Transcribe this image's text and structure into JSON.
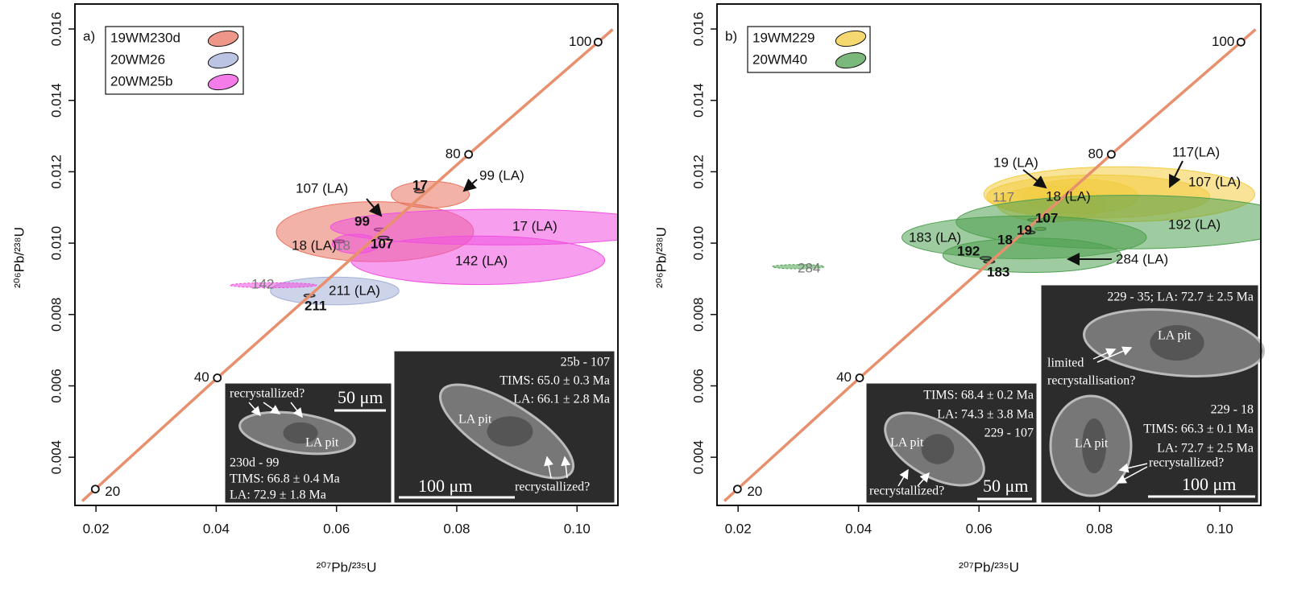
{
  "chart_data": [
    {
      "type": "concordia",
      "panel": "a)",
      "xlabel": "²⁰⁷Pb/²³⁵U",
      "ylabel": "²⁰⁶Pb/²³⁸U",
      "xlim": [
        0.0165,
        0.1068
      ],
      "ylim": [
        0.00265,
        0.0167
      ],
      "xticks": [
        0.02,
        0.04,
        0.06,
        0.08,
        {
          "value": 0.1,
          "label": "0.10"
        }
      ],
      "yticks": [
        0.004,
        0.006,
        0.008,
        {
          "value": 0.01,
          "label": "0.010"
        },
        0.012,
        0.014,
        0.016
      ],
      "concordia": {
        "color": "#e8906e",
        "ages": [
          20,
          40,
          80,
          100
        ],
        "x": [
          0.01989,
          0.04018,
          0.08197,
          0.1035
        ],
        "y": [
          0.003107,
          0.006224,
          0.012487,
          0.015633
        ]
      },
      "series": [
        {
          "name": "19WM230d",
          "color": "#e8735f",
          "ellipses": [
            {
              "x": 0.0664,
              "y": 0.01032,
              "ex": 0.0164,
              "ey": 0.00084,
              "label": "18 (LA)"
            },
            {
              "x": 0.0756,
              "y": 0.01136,
              "ex": 0.0065,
              "ey": 0.00037,
              "label": "99 (LA)"
            },
            {
              "x": 0.0672,
              "y": 0.01038,
              "ex": 0.0009,
              "ey": 4e-05,
              "label": "99"
            },
            {
              "x": 0.0738,
              "y": 0.01145,
              "ex": 0.0008,
              "ey": 4e-05,
              "label": "17"
            },
            {
              "x": 0.0605,
              "y": 0.01005,
              "ex": 0.0008,
              "ey": 4e-05,
              "label": "18"
            }
          ]
        },
        {
          "name": "20WM26",
          "color": "#a4b0d8",
          "ellipses": [
            {
              "x": 0.0597,
              "y": 0.00866,
              "ex": 0.0107,
              "ey": 0.00039,
              "label": "211 (LA)"
            },
            {
              "x": 0.0555,
              "y": 0.00853,
              "ex": 0.0009,
              "ey": 4e-05,
              "label": "211"
            }
          ]
        },
        {
          "name": "20WM25b",
          "color": "#f050e0",
          "ellipses": [
            {
              "x": 0.0872,
              "y": 0.01045,
              "ex": 0.0282,
              "ey": 0.0005,
              "label": "17 (LA)"
            },
            {
              "x": 0.0835,
              "y": 0.00952,
              "ex": 0.0211,
              "ey": 0.00068,
              "label": "142 (LA)"
            },
            {
              "x": 0.0632,
              "y": 0.00998,
              "ex": 0.0039,
              "ey": 0.00027,
              "label": "107 (LA)"
            },
            {
              "x": 0.0495,
              "y": 0.00882,
              "ex": 0.0072,
              "ey": 7e-05,
              "label": "142",
              "dashed": true
            },
            {
              "x": 0.0678,
              "y": 0.01015,
              "ex": 0.0009,
              "ey": 4e-05,
              "label": "107"
            }
          ]
        }
      ],
      "insets": [
        {
          "texts": [
            "recrystallized?",
            "50 μm",
            "LA pit",
            "230d - 99",
            "TIMS: 66.8 ± 0.4 Ma",
            "LA: 72.9 ± 1.8 Ma"
          ]
        },
        {
          "texts": [
            "25b - 107",
            "TIMS: 65.0 ± 0.3 Ma",
            "LA: 66.1 ± 2.8 Ma",
            "LA pit",
            "recrystallized?",
            "100 μm"
          ]
        }
      ]
    },
    {
      "type": "concordia",
      "panel": "b)",
      "xlabel": "²⁰⁷Pb/²³⁵U",
      "ylabel": "²⁰⁶Pb/²³⁸U",
      "xlim": [
        0.0165,
        0.1068
      ],
      "ylim": [
        0.00265,
        0.0167
      ],
      "xticks": [
        0.02,
        0.04,
        0.06,
        0.08,
        {
          "value": 0.1,
          "label": "0.10"
        }
      ],
      "yticks": [
        0.004,
        0.006,
        0.008,
        {
          "value": 0.01,
          "label": "0.010"
        },
        0.012,
        0.014,
        0.016
      ],
      "concordia": {
        "color": "#e8906e",
        "ages": [
          20,
          40,
          80,
          100
        ],
        "x": [
          0.01989,
          0.04018,
          0.08197,
          0.1035
        ],
        "y": [
          0.003107,
          0.006224,
          0.012487,
          0.015633
        ]
      },
      "series": [
        {
          "name": "19WM229",
          "color": "#f2cc40",
          "ellipses": [
            {
              "x": 0.0833,
              "y": 0.01137,
              "ex": 0.0225,
              "ey": 0.00077,
              "label": "117(LA)"
            },
            {
              "x": 0.0798,
              "y": 0.01131,
              "ex": 0.0185,
              "ey": 0.0006,
              "label": "107 (LA)"
            },
            {
              "x": 0.0769,
              "y": 0.01131,
              "ex": 0.0095,
              "ey": 0.00048,
              "label": "18 (LA)"
            },
            {
              "x": 0.072,
              "y": 0.0111,
              "ex": 0.009,
              "ey": 0.0005,
              "label": "19 (LA)"
            },
            {
              "x": 0.0711,
              "y": 0.0113,
              "ex": 0.0012,
              "ey": 3e-05,
              "label": "117",
              "dashed": true
            },
            {
              "x": 0.0697,
              "y": 0.01065,
              "ex": 0.0016,
              "ey": 4e-05,
              "label": "107"
            },
            {
              "x": 0.0702,
              "y": 0.0104,
              "ex": 0.0009,
              "ey": 4e-05,
              "label": "19"
            }
          ]
        },
        {
          "name": "20WM40",
          "color": "#4fa050",
          "ellipses": [
            {
              "x": 0.0847,
              "y": 0.01059,
              "ex": 0.0285,
              "ey": 0.00075,
              "label": "192 (LA)"
            },
            {
              "x": 0.0675,
              "y": 0.01016,
              "ex": 0.0203,
              "ey": 0.0006,
              "label": "183 (LA)"
            },
            {
              "x": 0.0688,
              "y": 0.00966,
              "ex": 0.0148,
              "ey": 0.00048,
              "label": "284 (LA)"
            },
            {
              "x": 0.03,
              "y": 0.00934,
              "ex": 0.0043,
              "ey": 6e-05,
              "label": "284",
              "dashed": true
            },
            {
              "x": 0.0611,
              "y": 0.00958,
              "ex": 0.0009,
              "ey": 4e-05,
              "label": "192"
            },
            {
              "x": 0.0617,
              "y": 0.00948,
              "ex": 0.0009,
              "ey": 4e-05,
              "label": "183"
            },
            {
              "x": 0.0684,
              "y": 0.0103,
              "ex": 0.0009,
              "ey": 4e-05,
              "label": "18"
            }
          ]
        }
      ],
      "insets": [
        {
          "texts": [
            "TIMS: 68.4 ± 0.2 Ma",
            "LA: 74.3 ± 3.8 Ma",
            "229 - 107",
            "LA pit",
            "recrystallized?",
            "50 μm"
          ]
        },
        {
          "texts": [
            "229 - 35; LA: 72.7 ± 2.5 Ma",
            "LA pit",
            "limited",
            "recrystallisation?",
            "229 - 18",
            "TIMS: 66.3 ± 0.1 Ma",
            "LA: 72.7 ± 2.5 Ma",
            "LA pit",
            "recrystallized?",
            "100 μm"
          ]
        }
      ]
    }
  ]
}
